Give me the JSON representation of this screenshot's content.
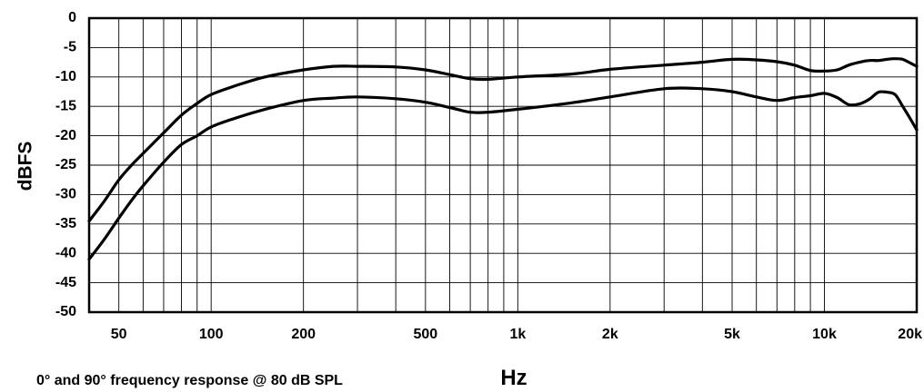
{
  "chart_data": {
    "type": "line",
    "title": "",
    "caption": "0° and 90° frequency response @ 80 dB SPL",
    "xlabel": "Hz",
    "ylabel": "dBFS",
    "xscale": "log",
    "xlim": [
      40,
      20000
    ],
    "ylim": [
      -50,
      0
    ],
    "grid": true,
    "legend": "none",
    "x_ticks": [
      {
        "value": 50,
        "label": "50"
      },
      {
        "value": 100,
        "label": "100"
      },
      {
        "value": 200,
        "label": "200"
      },
      {
        "value": 500,
        "label": "500"
      },
      {
        "value": 1000,
        "label": "1k"
      },
      {
        "value": 2000,
        "label": "2k"
      },
      {
        "value": 5000,
        "label": "5k"
      },
      {
        "value": 10000,
        "label": "10k"
      },
      {
        "value": 20000,
        "label": "20k"
      }
    ],
    "y_ticks": [
      {
        "value": 0,
        "label": "0"
      },
      {
        "value": -5,
        "label": "-5"
      },
      {
        "value": -10,
        "label": "-10"
      },
      {
        "value": -15,
        "label": "-15"
      },
      {
        "value": -20,
        "label": "-20"
      },
      {
        "value": -25,
        "label": "-25"
      },
      {
        "value": -30,
        "label": "-30"
      },
      {
        "value": -35,
        "label": "-35"
      },
      {
        "value": -40,
        "label": "-40"
      },
      {
        "value": -45,
        "label": "-45"
      },
      {
        "value": -50,
        "label": "-50"
      }
    ],
    "series": [
      {
        "x": [
          40,
          45,
          50,
          55,
          60,
          70,
          80,
          90,
          100,
          120,
          150,
          200,
          250,
          300,
          400,
          500,
          600,
          700,
          800,
          1000,
          1500,
          2000,
          3000,
          4000,
          5000,
          6000,
          7000,
          8000,
          9000,
          10000,
          11000,
          12000,
          13000,
          14000,
          15000,
          16000,
          17000,
          18000,
          19000,
          20000
        ],
        "y": [
          -34.5,
          -31.0,
          -27.5,
          -25.0,
          -23.0,
          -19.5,
          -16.5,
          -14.5,
          -13.0,
          -11.5,
          -10.0,
          -8.8,
          -8.2,
          -8.2,
          -8.3,
          -8.8,
          -9.6,
          -10.3,
          -10.4,
          -10.0,
          -9.5,
          -8.7,
          -8.0,
          -7.5,
          -7.0,
          -7.1,
          -7.4,
          -8.0,
          -8.9,
          -9.0,
          -8.8,
          -8.0,
          -7.5,
          -7.2,
          -7.2,
          -7.0,
          -6.9,
          -7.0,
          -7.6,
          -8.2
        ]
      },
      {
        "x": [
          40,
          45,
          50,
          55,
          60,
          70,
          80,
          90,
          100,
          120,
          150,
          200,
          250,
          300,
          400,
          500,
          600,
          700,
          800,
          1000,
          1500,
          2000,
          3000,
          4000,
          5000,
          6000,
          7000,
          8000,
          9000,
          10000,
          11000,
          12000,
          13000,
          14000,
          15000,
          16000,
          17000,
          18000,
          19000,
          20000
        ],
        "y": [
          -41.0,
          -37.5,
          -34.0,
          -31.0,
          -28.5,
          -24.5,
          -21.5,
          -20.0,
          -18.5,
          -17.0,
          -15.5,
          -14.0,
          -13.6,
          -13.4,
          -13.7,
          -14.3,
          -15.2,
          -16.0,
          -16.0,
          -15.5,
          -14.4,
          -13.4,
          -12.0,
          -12.0,
          -12.5,
          -13.4,
          -14.0,
          -13.5,
          -13.2,
          -12.8,
          -13.5,
          -14.7,
          -14.6,
          -13.8,
          -12.6,
          -12.6,
          -13.0,
          -15.0,
          -17.0,
          -19.0
        ]
      }
    ]
  }
}
